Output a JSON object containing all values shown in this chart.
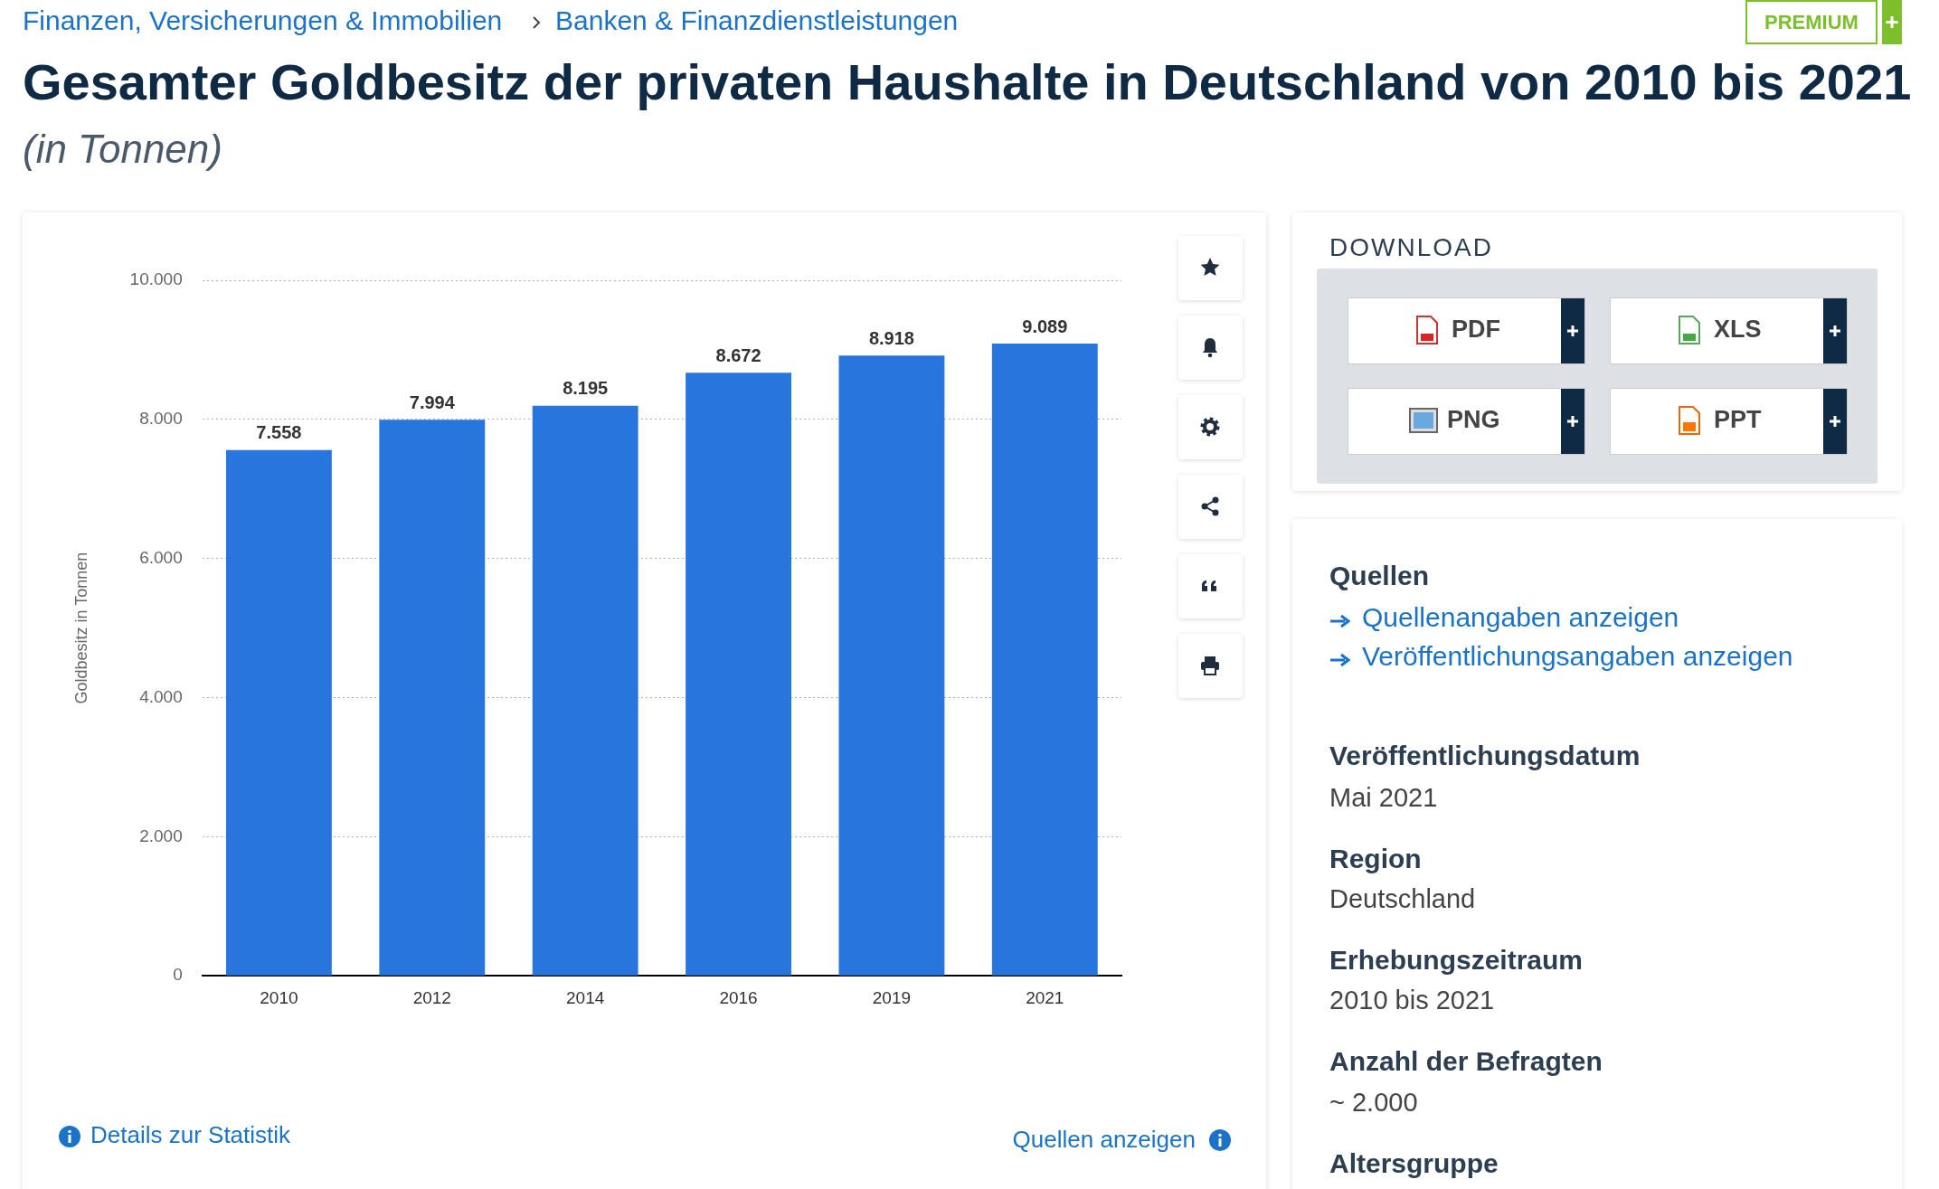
{
  "chart_data": {
    "type": "bar",
    "title": "Gesamter Goldbesitz der privaten Haushalte in Deutschland von 2010 bis 2021",
    "subtitle": "(in Tonnen)",
    "ylabel": "Goldbesitz in Tonnen",
    "categories": [
      "2010",
      "2012",
      "2014",
      "2016",
      "2019",
      "2021"
    ],
    "values": [
      7558,
      7994,
      8195,
      8672,
      8918,
      9089
    ],
    "value_labels": [
      "7.558",
      "7.994",
      "8.195",
      "8.672",
      "8.918",
      "9.089"
    ],
    "color": "#2876dd",
    "ylim": [
      0,
      10000
    ],
    "yticks": [
      {
        "value": 0,
        "label": "0"
      },
      {
        "value": 2000,
        "label": "2.000"
      },
      {
        "value": 4000,
        "label": "4.000"
      },
      {
        "value": 6000,
        "label": "6.000"
      },
      {
        "value": 8000,
        "label": "8.000"
      },
      {
        "value": 10000,
        "label": "10.000"
      }
    ],
    "grid": "y",
    "annotations": [
      "Finanzen, Versicherungen & Immobilien",
      "Banken & Finanzdienstleistungen",
      "PREMIUM",
      "DOWNLOAD",
      "PDF",
      "XLS",
      "PNG",
      "PPT",
      "Quellen",
      "Quellenangaben anzeigen",
      "Veröffentlichungsangaben anzeigen",
      "Veröffentlichungsdatum",
      "Mai 2021",
      "Region",
      "Deutschland",
      "Erhebungszeitraum",
      "2010 bis 2021",
      "Anzahl der Befragten",
      "~ 2.000",
      "Altersgruppe",
      "Details zur Statistik",
      "Quellen anzeigen"
    ]
  }
}
